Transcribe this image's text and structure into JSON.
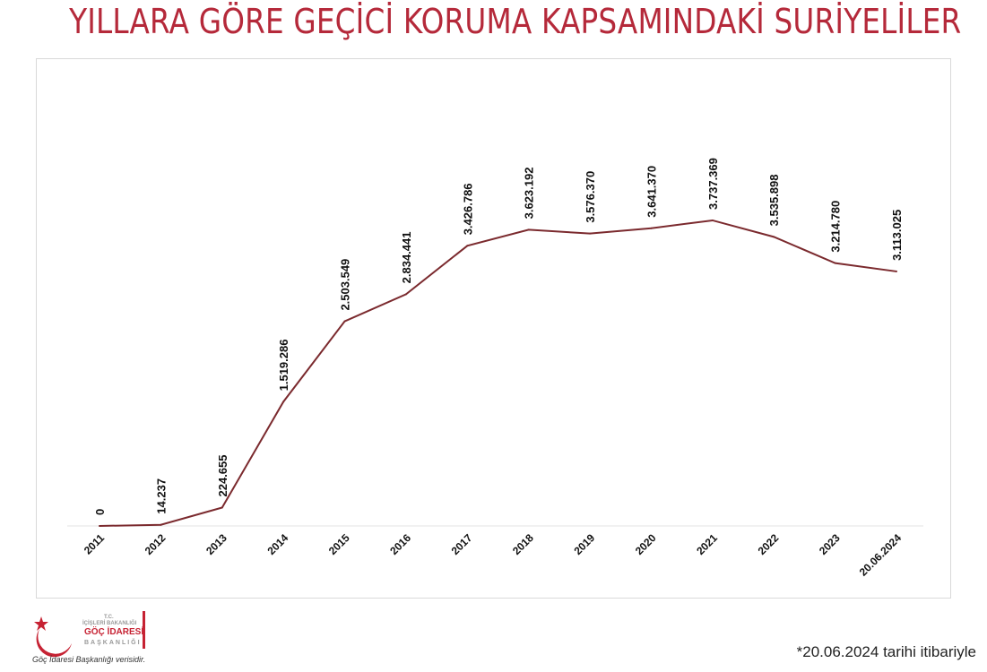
{
  "title": "YILLARA GÖRE GEÇİCİ KORUMA KAPSAMINDAKİ SURİYELİLER",
  "footnote": "*20.06.2024 tarihi itibariyle",
  "logo": {
    "line1": "T.C.",
    "line2": "İÇİŞLERİ BAKANLIĞI",
    "line3": "GÖÇ İDARESİ",
    "line4": "BAŞKANLIĞI",
    "caption": "Göç İdaresi Başkanlığı verisidir."
  },
  "colors": {
    "title": "#b5293a",
    "line": "#7b2a2e",
    "logo": "#c62233"
  },
  "chart_data": {
    "type": "line",
    "categories": [
      "2011",
      "2012",
      "2013",
      "2014",
      "2015",
      "2016",
      "2017",
      "2018",
      "2019",
      "2020",
      "2021",
      "2022",
      "2023",
      "20.06.2024"
    ],
    "values": [
      0,
      14237,
      224655,
      1519286,
      2503549,
      2834441,
      3426786,
      3623192,
      3576370,
      3641370,
      3737369,
      3535898,
      3214780,
      3113025
    ],
    "data_labels": [
      "0",
      "14.237",
      "224.655",
      "1.519.286",
      "2.503.549",
      "2.834.441",
      "3.426.786",
      "3.623.192",
      "3.576.370",
      "3.641.370",
      "3.737.369",
      "3.535.898",
      "3.214.780",
      "3.113.025"
    ],
    "ylim": [
      0,
      4000000
    ],
    "grid": false,
    "legend": "none"
  }
}
